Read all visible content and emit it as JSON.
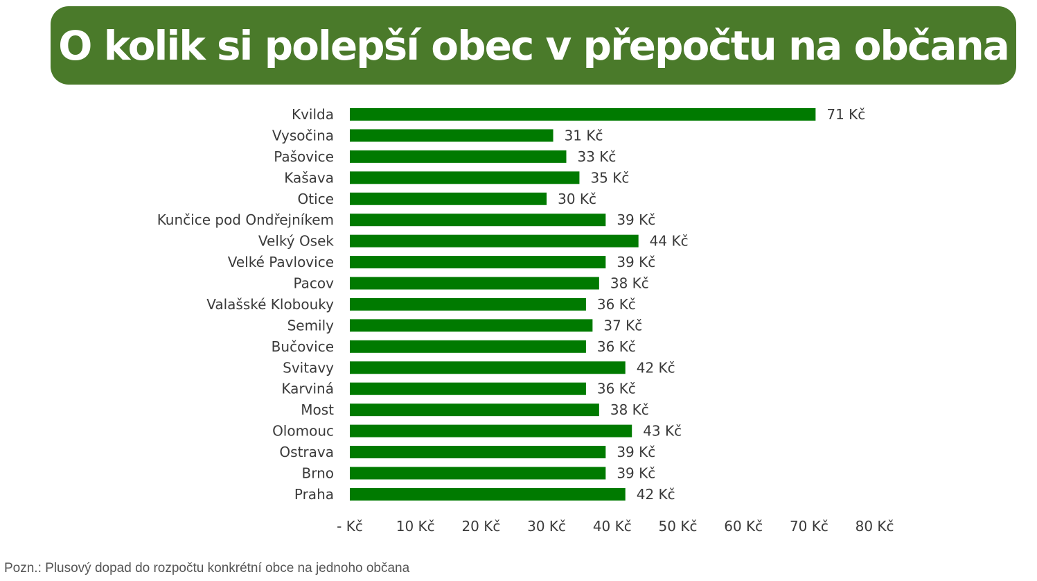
{
  "title": "O kolik si polepší obec v přepočtu na občana",
  "footnote": "Pozn.: Plusový dopad do rozpočtu konkrétní obce na jednoho občana",
  "colors": {
    "banner": "#4a7a2a",
    "bar": "#007a00",
    "text": "#3a3a3a"
  },
  "chart_data": {
    "type": "bar",
    "orientation": "horizontal",
    "categories": [
      "Kvilda",
      "Vysočina",
      "Pašovice",
      "Kašava",
      "Otice",
      "Kunčice pod Ondřejníkem",
      "Velký Osek",
      "Velké Pavlovice",
      "Pacov",
      "Valašské Klobouky",
      "Semily",
      "Bučovice",
      "Svitavy",
      "Karviná",
      "Most",
      "Olomouc",
      "Ostrava",
      "Brno",
      "Praha"
    ],
    "values": [
      71,
      31,
      33,
      35,
      30,
      39,
      44,
      39,
      38,
      36,
      37,
      36,
      42,
      36,
      38,
      43,
      39,
      39,
      42
    ],
    "value_labels": [
      "71 Kč",
      "31 Kč",
      "33 Kč",
      "35 Kč",
      "30 Kč",
      "39 Kč",
      "44 Kč",
      "39 Kč",
      "38 Kč",
      "36 Kč",
      "37 Kč",
      "36 Kč",
      "42 Kč",
      "36 Kč",
      "38 Kč",
      "43 Kč",
      "39 Kč",
      "39 Kč",
      "42 Kč"
    ],
    "xlim": [
      0,
      80
    ],
    "x_ticks": [
      0,
      10,
      20,
      30,
      40,
      50,
      60,
      70,
      80
    ],
    "x_tick_labels": [
      "-   Kč",
      "10 Kč",
      "20 Kč",
      "30 Kč",
      "40 Kč",
      "50 Kč",
      "60 Kč",
      "70 Kč",
      "80 Kč"
    ],
    "grid": false,
    "legend": "none"
  }
}
